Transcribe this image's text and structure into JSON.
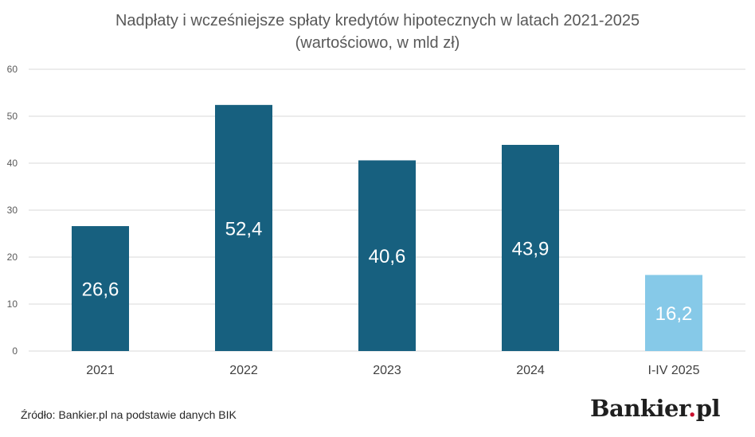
{
  "chart_data": {
    "type": "bar",
    "title": "Nadpłaty i wcześniejsze spłaty kredytów hipotecznych w latach 2021-2025",
    "subtitle": "(wartościowo, w mld zł)",
    "categories": [
      "2021",
      "2022",
      "2023",
      "2024",
      "I-IV 2025"
    ],
    "values": [
      26.6,
      52.4,
      40.6,
      43.9,
      16.2
    ],
    "data_labels": [
      "26,6",
      "52,4",
      "40,6",
      "43,9",
      "16,2"
    ],
    "yticks": [
      0,
      10,
      20,
      30,
      40,
      50,
      60
    ],
    "ylim": [
      0,
      60
    ],
    "grid": true,
    "legend": "none",
    "colors": {
      "bar": "#17607f",
      "bar_highlight": "#86c9e8",
      "grid": "#d9d9d9"
    }
  },
  "footer": {
    "source": "Źródło: Bankier.pl na podstawie danych BIK",
    "logo_text": "Bankier",
    "logo_dot": ".",
    "logo_suffix": "pl"
  }
}
